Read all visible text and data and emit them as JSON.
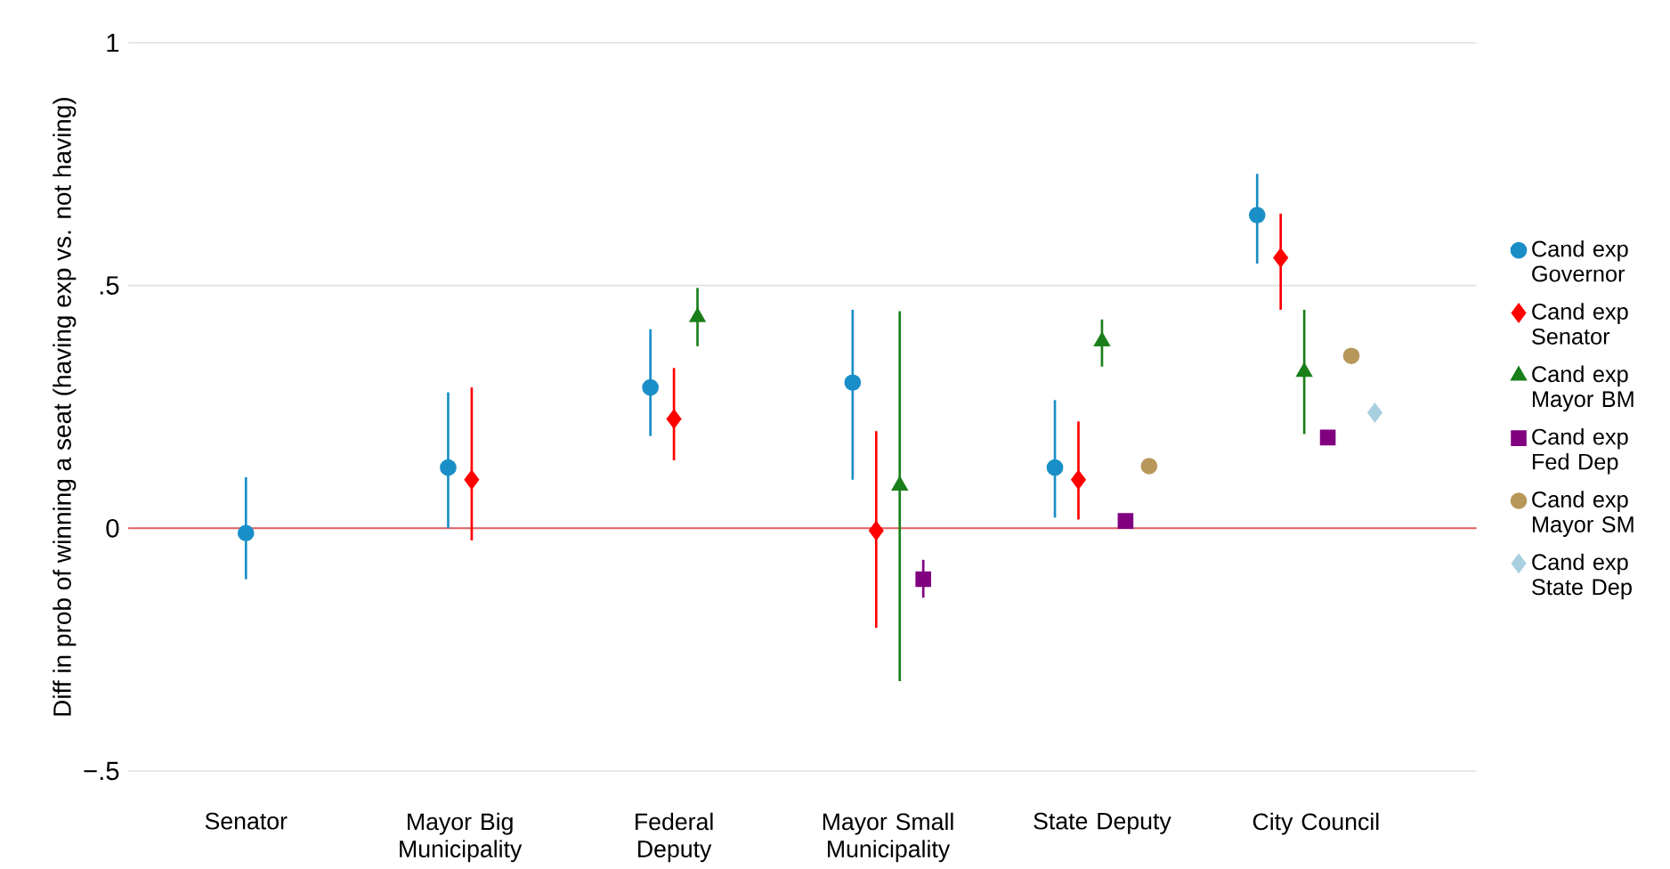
{
  "chart_data": {
    "type": "scatter",
    "ylabel": "Diff in prob of winning a seat (having exp vs. not having)",
    "categories": [
      "Senator",
      "Mayor Big Municipality",
      "Federal Deputy",
      "Mayor Small Municipality",
      "State Deputy",
      "City Council"
    ],
    "series": [
      {
        "name": "Cand exp Governor",
        "color": "#1a8fc7",
        "marker": "circle",
        "values": [
          -0.01,
          0.125,
          0.29,
          0.3,
          0.125,
          0.645
        ],
        "errors": [
          [
            -0.105,
            0.105
          ],
          [
            0.0,
            0.28
          ],
          [
            0.19,
            0.41
          ],
          [
            0.1,
            0.45
          ],
          [
            0.022,
            0.264
          ],
          [
            0.545,
            0.73
          ]
        ]
      },
      {
        "name": "Cand exp Senator",
        "color": "#ff0000",
        "marker": "diamond",
        "values": [
          null,
          0.1,
          0.225,
          -0.005,
          0.1,
          0.557
        ],
        "errors": [
          null,
          [
            -0.025,
            0.29
          ],
          [
            0.14,
            0.33
          ],
          [
            -0.205,
            0.2
          ],
          [
            0.018,
            0.22
          ],
          [
            0.45,
            0.648
          ]
        ]
      },
      {
        "name": "Cand exp Mayor BM",
        "color": "#1a7f1a",
        "marker": "triangle",
        "values": [
          null,
          null,
          0.435,
          0.088,
          0.385,
          0.322
        ],
        "errors": [
          null,
          null,
          [
            0.375,
            0.495
          ],
          [
            -0.315,
            0.447
          ],
          [
            0.333,
            0.43
          ],
          [
            0.194,
            0.45
          ]
        ]
      },
      {
        "name": "Cand exp Fed Dep",
        "color": "#800080",
        "marker": "square",
        "values": [
          null,
          null,
          null,
          -0.105,
          0.015,
          0.187
        ],
        "errors": [
          null,
          null,
          null,
          [
            -0.143,
            -0.065
          ],
          null,
          null
        ]
      },
      {
        "name": "Cand exp Mayor SM",
        "color": "#b8975a",
        "marker": "circle",
        "values": [
          null,
          null,
          null,
          null,
          0.128,
          0.355
        ]
      },
      {
        "name": "Cand exp State Dep",
        "color": "#a8cfe0",
        "marker": "diamond",
        "values": [
          null,
          null,
          null,
          null,
          null,
          0.238
        ]
      }
    ],
    "ylim": [
      -0.5,
      1
    ],
    "yticks": [
      {
        "value": -0.5,
        "label": "−.5"
      },
      {
        "value": 0,
        "label": "0"
      },
      {
        "value": 0.5,
        "label": ".5"
      },
      {
        "value": 1,
        "label": "1"
      }
    ],
    "ref_lines": [
      {
        "axis": "y",
        "value": 0,
        "color": "#e06060"
      }
    ],
    "grid": "y",
    "legend": "right"
  }
}
